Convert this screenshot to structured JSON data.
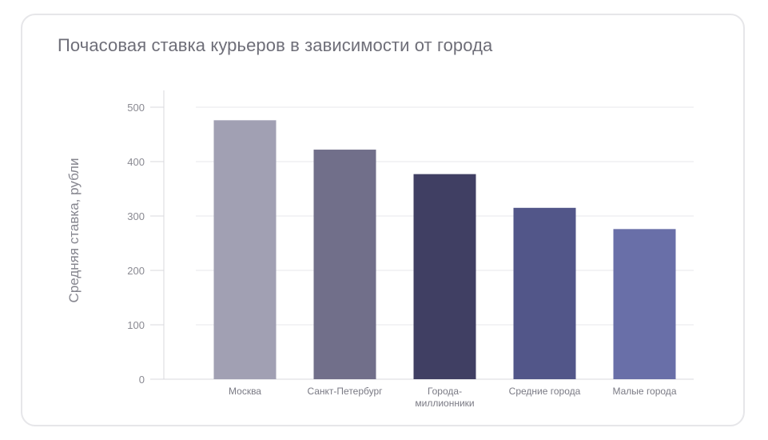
{
  "chart_data": {
    "type": "bar",
    "title": "Почасовая ставка курьеров в зависимости от города",
    "xlabel": "",
    "ylabel": "Средняя ставка, рубли",
    "categories": [
      [
        "Москва"
      ],
      [
        "Санкт-Петербург"
      ],
      [
        "Города-",
        "миллионники"
      ],
      [
        "Средние города"
      ],
      [
        "Малые города"
      ]
    ],
    "values": [
      476,
      422,
      377,
      315,
      276
    ],
    "colors": [
      "#a1a0b3",
      "#716f8a",
      "#403f63",
      "#525689",
      "#696fa8"
    ],
    "ylim": [
      0,
      500
    ],
    "yticks": [
      0,
      100,
      200,
      300,
      400,
      500
    ],
    "grid": true,
    "legend": "none"
  }
}
